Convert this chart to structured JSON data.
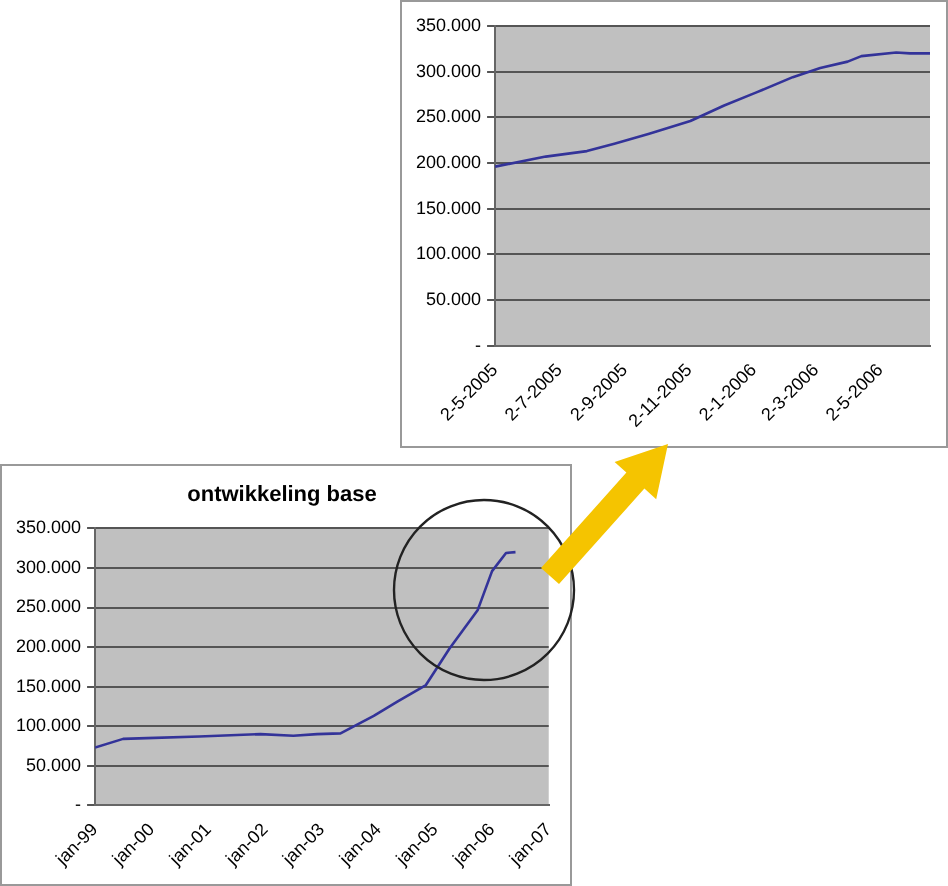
{
  "chart_data": [
    {
      "type": "line",
      "color": "#333399",
      "marker": "none",
      "grid": "y",
      "x": [
        "2005-05-02",
        "2005-06-19",
        "2005-07-28",
        "2005-08-23",
        "2005-09-25",
        "2005-11-03",
        "2005-12-05",
        "2006-01-04",
        "2006-02-08",
        "2006-03-06",
        "2006-04-01",
        "2006-04-14",
        "2006-05-17",
        "2006-05-30",
        "2006-06-18"
      ],
      "values": [
        196000,
        207000,
        213000,
        221000,
        232000,
        246000,
        263000,
        277000,
        294000,
        304000,
        311000,
        317000,
        321000,
        320000,
        320000
      ],
      "xlim": [
        "2005-05-02",
        "2006-06-18"
      ],
      "xticks": [
        {
          "value": "2005-05-02",
          "label": "2-5-2005"
        },
        {
          "value": "2005-07-02",
          "label": "2-7-2005"
        },
        {
          "value": "2005-09-02",
          "label": "2-9-2005"
        },
        {
          "value": "2005-11-02",
          "label": "2-11-2005"
        },
        {
          "value": "2006-01-02",
          "label": "2-1-2006"
        },
        {
          "value": "2006-03-02",
          "label": "2-3-2006"
        },
        {
          "value": "2006-05-02",
          "label": "2-5-2006"
        }
      ],
      "ylim": [
        0,
        350000
      ],
      "yticks": [
        {
          "value": 0,
          "label": "-"
        },
        {
          "value": 50000,
          "label": "50.000"
        },
        {
          "value": 100000,
          "label": "100.000"
        },
        {
          "value": 150000,
          "label": "150.000"
        },
        {
          "value": 200000,
          "label": "200.000"
        },
        {
          "value": 250000,
          "label": "250.000"
        },
        {
          "value": 300000,
          "label": "300.000"
        },
        {
          "value": 350000,
          "label": "350.000"
        }
      ]
    },
    {
      "type": "line",
      "title": "ontwikkeling base",
      "color": "#333399",
      "marker": "none",
      "grid": "y",
      "x": [
        "1999-01",
        "1999-07",
        "1999-12",
        "2000-11",
        "2001-12",
        "2002-07",
        "2002-12",
        "2003-05",
        "2003-12",
        "2004-05",
        "2004-11",
        "2005-04",
        "2005-10",
        "2006-01",
        "2006-04",
        "2006-06"
      ],
      "values": [
        73000,
        84000,
        85000,
        87000,
        90000,
        88000,
        90000,
        91000,
        113000,
        131000,
        152000,
        198000,
        247000,
        296000,
        319000,
        320000
      ],
      "xlim": [
        "1999-01",
        "2007-01"
      ],
      "xticks": [
        {
          "value": "1999-01",
          "label": "jan-99"
        },
        {
          "value": "2000-01",
          "label": "jan-00"
        },
        {
          "value": "2001-01",
          "label": "jan-01"
        },
        {
          "value": "2002-01",
          "label": "jan-02"
        },
        {
          "value": "2003-01",
          "label": "jan-03"
        },
        {
          "value": "2004-01",
          "label": "jan-04"
        },
        {
          "value": "2005-01",
          "label": "jan-05"
        },
        {
          "value": "2006-01",
          "label": "jan-06"
        },
        {
          "value": "2007-01",
          "label": "jan-07"
        }
      ],
      "ylim": [
        0,
        350000
      ],
      "yticks": [
        {
          "value": 0,
          "label": "-"
        },
        {
          "value": 50000,
          "label": "50.000"
        },
        {
          "value": 100000,
          "label": "100.000"
        },
        {
          "value": 150000,
          "label": "150.000"
        },
        {
          "value": 200000,
          "label": "200.000"
        },
        {
          "value": 250000,
          "label": "250.000"
        },
        {
          "value": 300000,
          "label": "300.000"
        },
        {
          "value": 350000,
          "label": "350.000"
        }
      ]
    }
  ]
}
